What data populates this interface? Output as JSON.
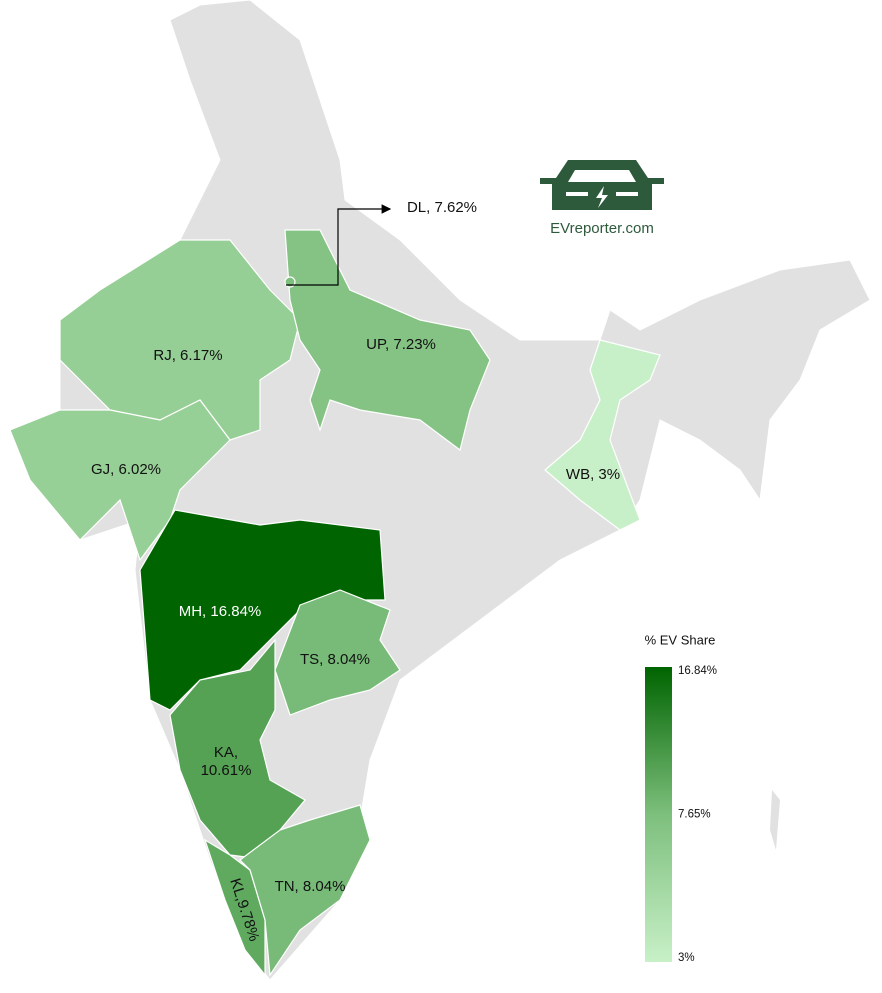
{
  "map": {
    "regions": [
      {
        "label": "RJ, 6.17%",
        "value": 6.17
      },
      {
        "label": "GJ, 6.02%",
        "value": 6.02
      },
      {
        "label": "UP, 7.23%",
        "value": 7.23
      },
      {
        "label": "MH, 16.84%",
        "value": 16.84
      },
      {
        "label": "TS, 8.04%",
        "value": 8.04
      },
      {
        "label": "KA, 10.61%",
        "value": 10.61
      },
      {
        "label": "KL,9.78%",
        "value": 9.78
      },
      {
        "label": "TN, 8.04%",
        "value": 8.04
      },
      {
        "label": "WB, 3%",
        "value": 3
      },
      {
        "label": "DL, 7.62%",
        "value": 7.62
      }
    ],
    "legend": {
      "title": "% EV Share",
      "ticks": [
        {
          "value": 16.84,
          "label": "16.84%",
          "color": "#006400"
        },
        {
          "value": 7.65,
          "label": "7.65%",
          "color": "#7dbf7d"
        },
        {
          "value": 3,
          "label": "3%",
          "color": "#c8f0c8"
        }
      ]
    },
    "logo": "EVreporter.com"
  }
}
